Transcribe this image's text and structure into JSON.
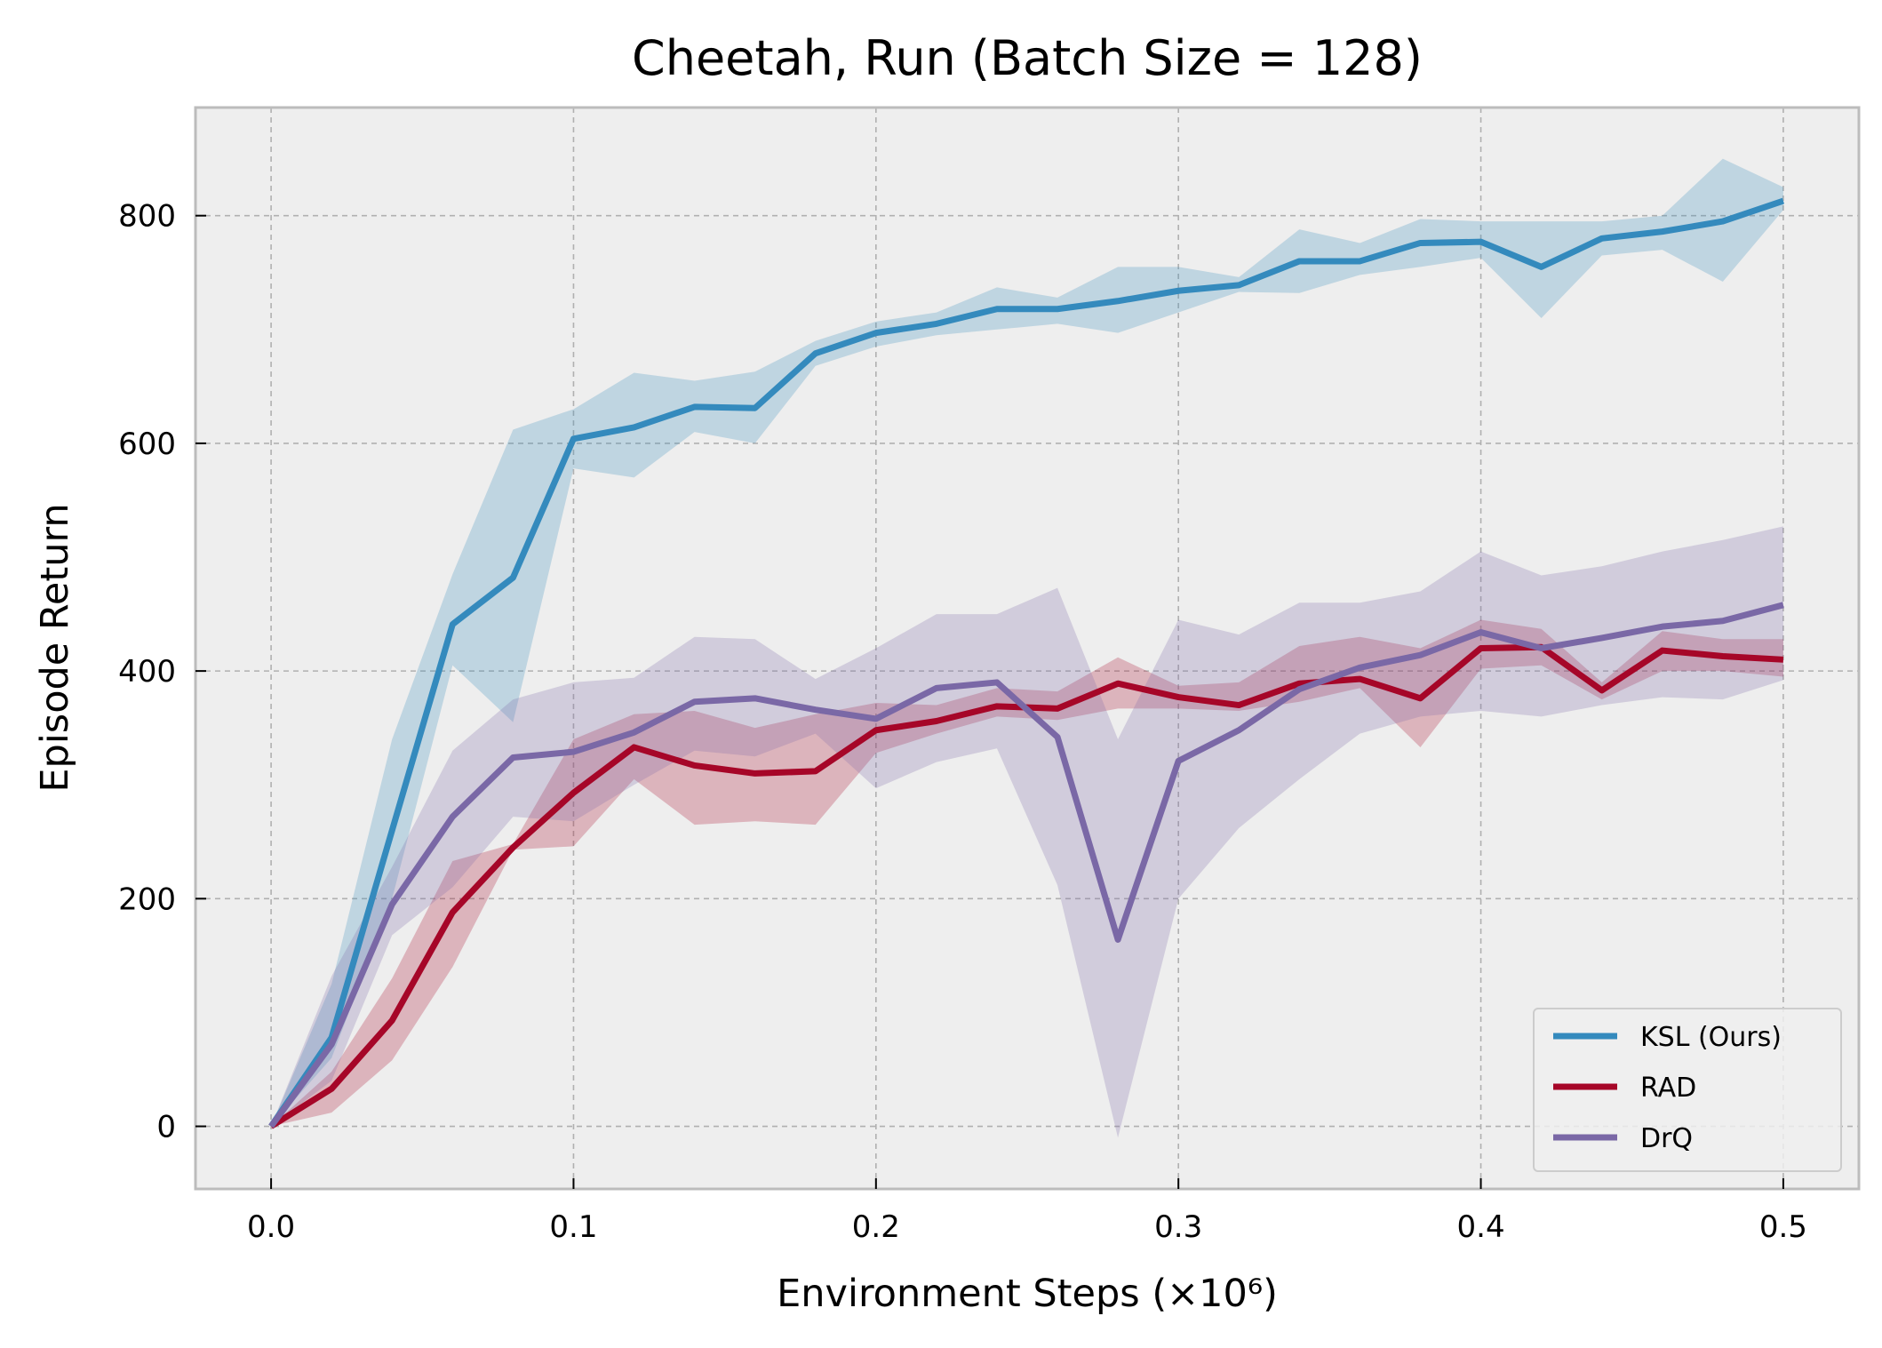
{
  "chart_data": {
    "type": "line",
    "title": "Cheetah, Run (Batch Size = 128)",
    "xlabel": "Environment Steps (×10⁶)",
    "ylabel": "Episode Return",
    "xlim": [
      -0.025,
      0.525
    ],
    "ylim": [
      -55,
      895
    ],
    "x_ticks": [
      0.0,
      0.1,
      0.2,
      0.3,
      0.4,
      0.5
    ],
    "x_tick_labels": [
      "0.0",
      "0.1",
      "0.2",
      "0.3",
      "0.4",
      "0.5"
    ],
    "y_ticks": [
      0,
      200,
      400,
      600,
      800
    ],
    "y_tick_labels": [
      "0",
      "200",
      "400",
      "600",
      "800"
    ],
    "grid": true,
    "legend_position": "bottom-right",
    "x": [
      0.0,
      0.02,
      0.04,
      0.06,
      0.08,
      0.1,
      0.12,
      0.14,
      0.16,
      0.18,
      0.2,
      0.22,
      0.24,
      0.26,
      0.28,
      0.3,
      0.32,
      0.34,
      0.36,
      0.38,
      0.4,
      0.42,
      0.44,
      0.46,
      0.48,
      0.5
    ],
    "series": [
      {
        "name": "KSL (Ours)",
        "color": "#348abd",
        "values": [
          0,
          78,
          260,
          441,
          482,
          604,
          614,
          632,
          631,
          679,
          697,
          705,
          718,
          718,
          725,
          734,
          739,
          760,
          760,
          776,
          777,
          755,
          780,
          786,
          795,
          813
        ],
        "lower": [
          0,
          60,
          200,
          405,
          355,
          578,
          570,
          610,
          600,
          668,
          685,
          695,
          700,
          705,
          697,
          715,
          733,
          732,
          748,
          755,
          763,
          710,
          765,
          770,
          742,
          805
        ],
        "upper": [
          0,
          125,
          340,
          485,
          612,
          630,
          662,
          655,
          663,
          690,
          707,
          715,
          737,
          728,
          755,
          755,
          746,
          788,
          776,
          797,
          795,
          795,
          795,
          800,
          850,
          825
        ]
      },
      {
        "name": "RAD",
        "color": "#a60628",
        "values": [
          0,
          33,
          93,
          188,
          245,
          293,
          333,
          317,
          310,
          312,
          348,
          356,
          369,
          367,
          389,
          377,
          370,
          389,
          393,
          376,
          420,
          421,
          383,
          418,
          413,
          410
        ],
        "lower": [
          0,
          12,
          58,
          140,
          243,
          246,
          305,
          265,
          268,
          265,
          328,
          345,
          360,
          357,
          367,
          367,
          365,
          373,
          385,
          333,
          402,
          405,
          375,
          400,
          400,
          395
        ],
        "upper": [
          0,
          48,
          130,
          233,
          248,
          340,
          362,
          365,
          350,
          362,
          372,
          370,
          385,
          382,
          412,
          387,
          390,
          422,
          430,
          420,
          445,
          437,
          390,
          435,
          428,
          428
        ]
      },
      {
        "name": "DrQ",
        "color": "#7a68a6",
        "values": [
          0,
          72,
          195,
          272,
          324,
          329,
          346,
          373,
          376,
          366,
          358,
          385,
          390,
          342,
          164,
          321,
          348,
          384,
          403,
          414,
          434,
          420,
          429,
          439,
          444,
          458
        ],
        "lower": [
          0,
          40,
          168,
          210,
          272,
          268,
          300,
          330,
          325,
          345,
          297,
          320,
          332,
          212,
          -10,
          200,
          262,
          305,
          345,
          360,
          365,
          360,
          370,
          377,
          375,
          392
        ],
        "upper": [
          0,
          132,
          228,
          330,
          375,
          390,
          394,
          430,
          428,
          393,
          420,
          450,
          450,
          473,
          340,
          445,
          432,
          460,
          460,
          470,
          505,
          484,
          492,
          505,
          515,
          527
        ]
      }
    ]
  }
}
